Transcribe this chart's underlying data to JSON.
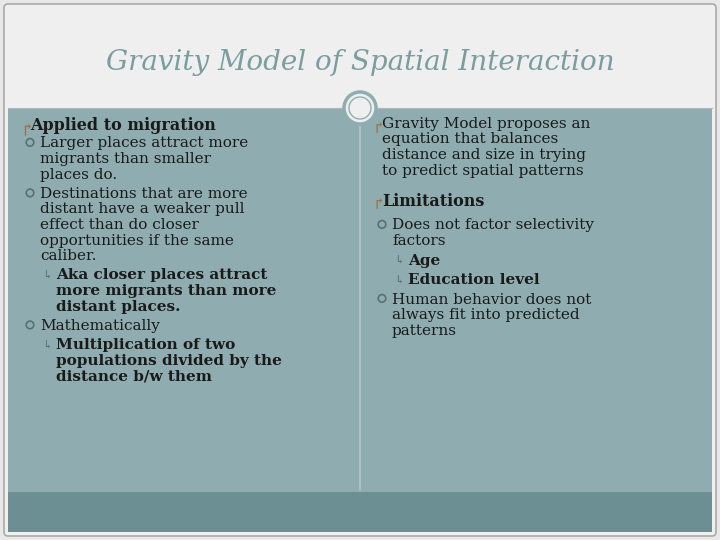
{
  "title": "Gravity Model of Spatial Interaction",
  "title_color": "#7a9e9f",
  "bg_color": "#e8e8e8",
  "slide_bg": "#8fadb0",
  "header_bg": "#e8e8e8",
  "footer_bg": "#6b8f92",
  "bullet_color": "#a07040",
  "text_dark": "#1a1a1a",
  "text_mid": "#3a3a3a",
  "left_column": {
    "heading": "Applied to migration",
    "items": [
      {
        "level": 1,
        "text": "Larger places attract more migrants than smaller places do.",
        "bold": false
      },
      {
        "level": 1,
        "text": "Destinations that are more distant have a weaker pull effect than do closer opportunities if the same caliber.",
        "bold": false
      },
      {
        "level": 2,
        "text": "Aka closer places attract more migrants than more distant places.",
        "bold": true
      },
      {
        "level": 1,
        "text": "Mathematically",
        "bold": false
      },
      {
        "level": 2,
        "text": "Multiplication of two populations divided by the distance b/w them",
        "bold": true
      }
    ]
  },
  "right_column": {
    "items": [
      {
        "level": 0,
        "text": "Gravity Model proposes an equation that balances distance and size in trying to predict spatial patterns",
        "bold": false
      },
      {
        "level": 0,
        "text": "Limitations",
        "bold": true
      },
      {
        "level": 1,
        "text": "Does not factor selectivity factors",
        "bold": false
      },
      {
        "level": 2,
        "text": "Age",
        "bold": true
      },
      {
        "level": 2,
        "text": "Education level",
        "bold": true
      },
      {
        "level": 1,
        "text": "Human behavior does not always fit into predicted patterns",
        "bold": false
      }
    ]
  }
}
